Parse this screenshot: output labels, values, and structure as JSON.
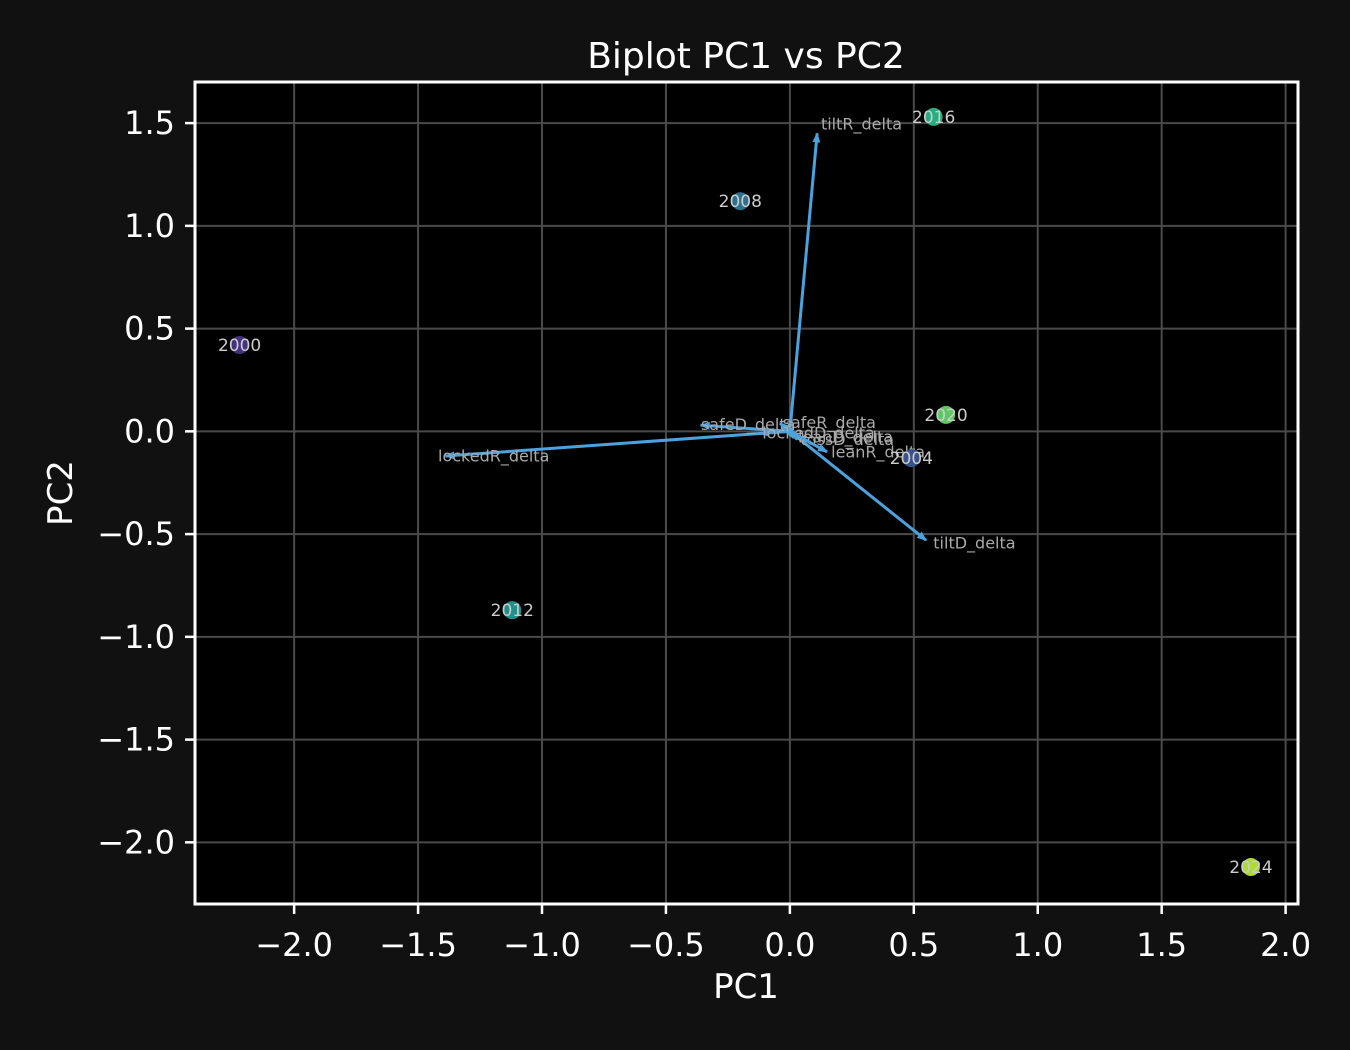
{
  "chart_data": {
    "type": "scatter",
    "title": "Biplot PC1 vs PC2",
    "xlabel": "PC1",
    "ylabel": "PC2",
    "xlim": [
      -2.4,
      2.05
    ],
    "ylim": [
      -2.3,
      1.7
    ],
    "x_ticks": [
      -2.0,
      -1.5,
      -1.0,
      -0.5,
      0.0,
      0.5,
      1.0,
      1.5,
      2.0
    ],
    "y_ticks": [
      -2.0,
      -1.5,
      -1.0,
      -0.5,
      0.0,
      0.5,
      1.0,
      1.5
    ],
    "x_tick_labels": [
      "−2.0",
      "−1.5",
      "−1.0",
      "−0.5",
      "0.0",
      "0.5",
      "1.0",
      "1.5",
      "2.0"
    ],
    "y_tick_labels": [
      "−2.0",
      "−1.5",
      "−1.0",
      "−0.5",
      "0.0",
      "0.5",
      "1.0",
      "1.5"
    ],
    "grid": true,
    "points": [
      {
        "label": "2000",
        "x": -2.22,
        "y": 0.42,
        "color": "#46317e"
      },
      {
        "label": "2004",
        "x": 0.49,
        "y": -0.13,
        "color": "#3b528b"
      },
      {
        "label": "2008",
        "x": -0.2,
        "y": 1.12,
        "color": "#2c728e"
      },
      {
        "label": "2012",
        "x": -1.12,
        "y": -0.87,
        "color": "#21918c"
      },
      {
        "label": "2016",
        "x": 0.58,
        "y": 1.53,
        "color": "#27ad81"
      },
      {
        "label": "2020",
        "x": 0.63,
        "y": 0.08,
        "color": "#5ec962"
      },
      {
        "label": "2024",
        "x": 1.86,
        "y": -2.12,
        "color": "#addc30"
      }
    ],
    "loadings": [
      {
        "label": "tiltR_delta",
        "x": 0.11,
        "y": 1.45
      },
      {
        "label": "tiltD_delta",
        "x": 0.55,
        "y": -0.53
      },
      {
        "label": "lockedR_delta",
        "x": -1.39,
        "y": -0.12
      },
      {
        "label": "safeD_delta",
        "x": -0.36,
        "y": 0.03
      },
      {
        "label": "safeR_delta",
        "x": -0.04,
        "y": 0.04
      },
      {
        "label": "lockedD_delta",
        "x": -0.12,
        "y": -0.01
      },
      {
        "label": "leanD_delta",
        "x": 0.02,
        "y": -0.03
      },
      {
        "label": "tossD_delta",
        "x": 0.03,
        "y": -0.04
      },
      {
        "label": "leanR_delta",
        "x": 0.15,
        "y": -0.1
      }
    ],
    "arrow_color": "#4aa3df"
  }
}
